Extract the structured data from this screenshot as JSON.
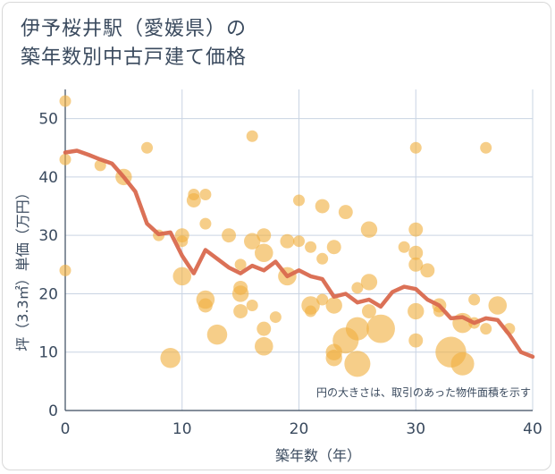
{
  "chart_data": {
    "type": "scatter",
    "title_lines": [
      "伊予桜井駅（愛媛県）の",
      "築年数別中古戸建て価格"
    ],
    "xlabel": "築年数（年）",
    "ylabel": "坪（3.3㎡）単価（万円）",
    "xlim": [
      0,
      40
    ],
    "ylim": [
      0,
      55
    ],
    "xticks": [
      0,
      10,
      20,
      30,
      40
    ],
    "yticks": [
      0,
      10,
      20,
      30,
      40,
      50
    ],
    "grid": true,
    "note": "円の大きさは、取引のあった物件面積を示す",
    "colors": {
      "bubble": "#f0b040",
      "line": "#d9694e",
      "grid": "#c9d4e3",
      "text": "#3a4a5e"
    },
    "bubbles": [
      {
        "x": 0,
        "y": 53,
        "s": 1
      },
      {
        "x": 0,
        "y": 43,
        "s": 1
      },
      {
        "x": 0,
        "y": 24,
        "s": 1
      },
      {
        "x": 3,
        "y": 42,
        "s": 1
      },
      {
        "x": 5,
        "y": 40,
        "s": 2
      },
      {
        "x": 7,
        "y": 45,
        "s": 1
      },
      {
        "x": 8,
        "y": 30,
        "s": 1
      },
      {
        "x": 9,
        "y": 9,
        "s": 3
      },
      {
        "x": 10,
        "y": 30,
        "s": 1.5
      },
      {
        "x": 10,
        "y": 29,
        "s": 1
      },
      {
        "x": 10,
        "y": 23,
        "s": 2.5
      },
      {
        "x": 11,
        "y": 37,
        "s": 1
      },
      {
        "x": 11,
        "y": 36,
        "s": 1.5
      },
      {
        "x": 12,
        "y": 37,
        "s": 1
      },
      {
        "x": 12,
        "y": 32,
        "s": 1
      },
      {
        "x": 12,
        "y": 19,
        "s": 2.5
      },
      {
        "x": 12,
        "y": 18,
        "s": 1.5
      },
      {
        "x": 13,
        "y": 13,
        "s": 3
      },
      {
        "x": 14,
        "y": 30,
        "s": 1.5
      },
      {
        "x": 15,
        "y": 25,
        "s": 1
      },
      {
        "x": 15,
        "y": 21,
        "s": 1.5
      },
      {
        "x": 15,
        "y": 20,
        "s": 2
      },
      {
        "x": 15,
        "y": 17,
        "s": 1.5
      },
      {
        "x": 16,
        "y": 47,
        "s": 1
      },
      {
        "x": 16,
        "y": 29,
        "s": 2
      },
      {
        "x": 16,
        "y": 18,
        "s": 1
      },
      {
        "x": 17,
        "y": 30,
        "s": 1.5
      },
      {
        "x": 17,
        "y": 27,
        "s": 2.5
      },
      {
        "x": 17,
        "y": 14,
        "s": 1.5
      },
      {
        "x": 17,
        "y": 11,
        "s": 2.5
      },
      {
        "x": 18,
        "y": 16,
        "s": 1
      },
      {
        "x": 19,
        "y": 29,
        "s": 1.5
      },
      {
        "x": 19,
        "y": 23,
        "s": 2.5
      },
      {
        "x": 20,
        "y": 36,
        "s": 1
      },
      {
        "x": 20,
        "y": 29,
        "s": 1
      },
      {
        "x": 21,
        "y": 28,
        "s": 1
      },
      {
        "x": 21,
        "y": 18,
        "s": 2.5
      },
      {
        "x": 21,
        "y": 17,
        "s": 1
      },
      {
        "x": 22,
        "y": 35,
        "s": 1.5
      },
      {
        "x": 22,
        "y": 26,
        "s": 1
      },
      {
        "x": 22,
        "y": 19,
        "s": 1
      },
      {
        "x": 23,
        "y": 28,
        "s": 1.5
      },
      {
        "x": 23,
        "y": 18,
        "s": 2
      },
      {
        "x": 23,
        "y": 10,
        "s": 2
      },
      {
        "x": 23,
        "y": 9,
        "s": 2
      },
      {
        "x": 24,
        "y": 34,
        "s": 1.5
      },
      {
        "x": 24,
        "y": 12,
        "s": 5
      },
      {
        "x": 25,
        "y": 21,
        "s": 1
      },
      {
        "x": 25,
        "y": 14,
        "s": 4
      },
      {
        "x": 25,
        "y": 8,
        "s": 5
      },
      {
        "x": 26,
        "y": 31,
        "s": 2
      },
      {
        "x": 26,
        "y": 22,
        "s": 2
      },
      {
        "x": 26,
        "y": 17,
        "s": 1.5
      },
      {
        "x": 27,
        "y": 14,
        "s": 6
      },
      {
        "x": 29,
        "y": 28,
        "s": 1
      },
      {
        "x": 30,
        "y": 45,
        "s": 1
      },
      {
        "x": 30,
        "y": 31,
        "s": 1.5
      },
      {
        "x": 30,
        "y": 27,
        "s": 1.5
      },
      {
        "x": 30,
        "y": 25,
        "s": 1.5
      },
      {
        "x": 30,
        "y": 17,
        "s": 2
      },
      {
        "x": 30,
        "y": 12,
        "s": 1.5
      },
      {
        "x": 31,
        "y": 24,
        "s": 1.5
      },
      {
        "x": 32,
        "y": 18,
        "s": 1.5
      },
      {
        "x": 32,
        "y": 17,
        "s": 1
      },
      {
        "x": 33,
        "y": 10,
        "s": 7
      },
      {
        "x": 34,
        "y": 15,
        "s": 3
      },
      {
        "x": 34,
        "y": 8,
        "s": 4
      },
      {
        "x": 35,
        "y": 19,
        "s": 1
      },
      {
        "x": 35,
        "y": 15,
        "s": 1
      },
      {
        "x": 36,
        "y": 45,
        "s": 1
      },
      {
        "x": 36,
        "y": 14,
        "s": 1
      },
      {
        "x": 37,
        "y": 18,
        "s": 2.5
      },
      {
        "x": 38,
        "y": 14,
        "s": 1
      }
    ],
    "trend": [
      [
        0,
        44.2
      ],
      [
        1,
        44.5
      ],
      [
        2,
        43.8
      ],
      [
        3,
        43.0
      ],
      [
        4,
        42.3
      ],
      [
        5,
        40.0
      ],
      [
        6,
        37.5
      ],
      [
        7,
        32.0
      ],
      [
        8,
        30.2
      ],
      [
        9,
        30.5
      ],
      [
        10,
        26.5
      ],
      [
        11,
        23.5
      ],
      [
        12,
        27.5
      ],
      [
        13,
        26.0
      ],
      [
        14,
        24.5
      ],
      [
        15,
        23.5
      ],
      [
        16,
        24.8
      ],
      [
        17,
        24.0
      ],
      [
        18,
        25.5
      ],
      [
        19,
        23.0
      ],
      [
        20,
        24.0
      ],
      [
        21,
        23.0
      ],
      [
        22,
        22.5
      ],
      [
        23,
        19.5
      ],
      [
        24,
        20.0
      ],
      [
        25,
        18.5
      ],
      [
        26,
        19.0
      ],
      [
        27,
        17.8
      ],
      [
        28,
        20.3
      ],
      [
        29,
        21.2
      ],
      [
        30,
        20.8
      ],
      [
        31,
        19.0
      ],
      [
        32,
        18.0
      ],
      [
        33,
        15.8
      ],
      [
        34,
        16.0
      ],
      [
        35,
        15.0
      ],
      [
        36,
        15.8
      ],
      [
        37,
        15.5
      ],
      [
        38,
        13.0
      ],
      [
        39,
        10.0
      ],
      [
        40,
        9.2
      ]
    ]
  }
}
